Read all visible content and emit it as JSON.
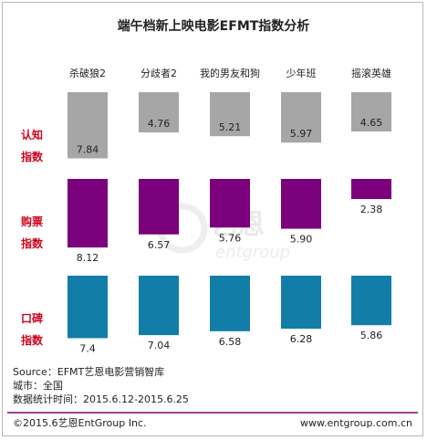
{
  "chart_data": {
    "type": "bar",
    "title": "端午档新上映电影EFMT指数分析",
    "categories": [
      "杀破狼2",
      "分歧者2",
      "我的男友和狗",
      "少年班",
      "摇滚英雄"
    ],
    "series": [
      {
        "name": "认知\n指数",
        "color": "#a6a6a6",
        "values": [
          7.84,
          4.76,
          5.21,
          5.97,
          4.65
        ],
        "labels": [
          "7.84",
          "4.76",
          "5.21",
          "5.97",
          "4.65"
        ]
      },
      {
        "name": "购票\n指数",
        "color": "#7b007b",
        "values": [
          8.12,
          6.57,
          5.76,
          5.9,
          2.38
        ],
        "labels": [
          "8.12",
          "6.57",
          "5.76",
          "5.90",
          "2.38"
        ]
      },
      {
        "name": "口碑\n指数",
        "color": "#127ea8",
        "values": [
          7.4,
          7.04,
          6.58,
          6.28,
          5.86
        ],
        "labels": [
          "7.4",
          "7.04",
          "6.58",
          "6.28",
          "5.86"
        ]
      }
    ]
  },
  "watermark": {
    "cn": "艺恩",
    "en": "entgroup"
  },
  "source": {
    "line1": "Source：EFMT艺恩电影营销智库",
    "line2": "城市：全国",
    "line3": "数据统计时间：2015.6.12-2015.6.25"
  },
  "footer": {
    "copyright": "©2015.6艺恩EntGroup Inc.",
    "website": "www.entgroup.com.cn",
    "line_color": "#7b007b"
  }
}
